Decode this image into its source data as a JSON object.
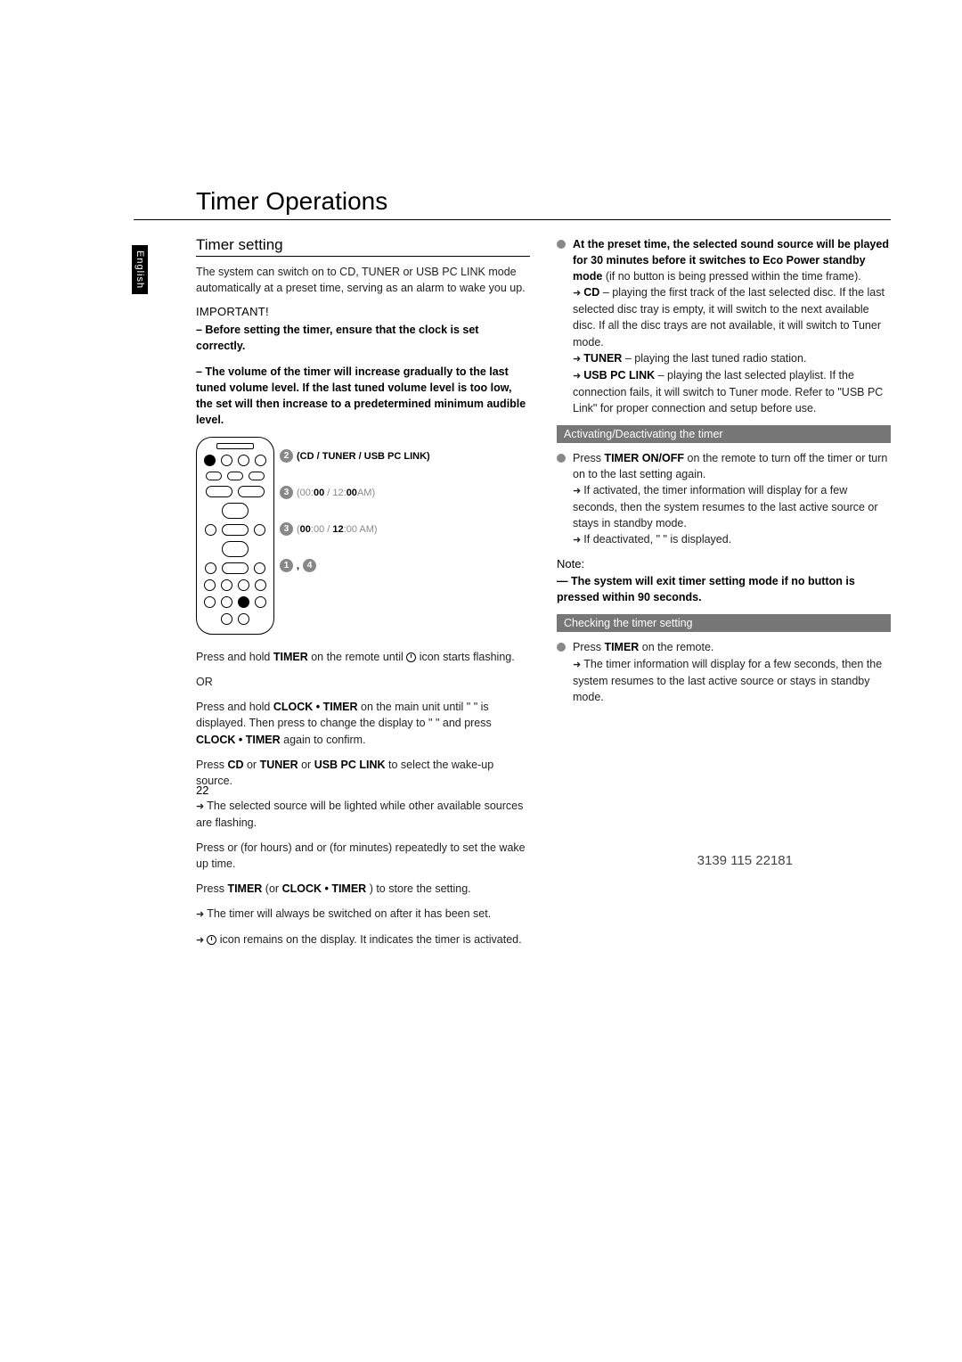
{
  "language_tab": "English",
  "title": "Timer Operations",
  "left": {
    "heading": "Timer setting",
    "intro": "The system can switch on to CD, TUNER or USB PC LINK mode automatically at a preset time, serving as an alarm to wake you up.",
    "important_label": "IMPORTANT!",
    "important_1": "– Before setting the timer, ensure that the clock is set correctly.",
    "important_2": "– The volume of the timer will increase gradually to the last tuned volume level. If the last tuned volume level is too low, the set will then increase to a predetermined minimum audible level.",
    "callout_2": "(CD / TUNER / USB PC LINK)",
    "callout_3a_prefix": "(00:",
    "callout_3a_bold": "00",
    "callout_3a_mid": " / 12:",
    "callout_3a_bold2": "00",
    "callout_3a_suffix": "AM)",
    "callout_3b_prefix": "(",
    "callout_3b_bold": "00",
    "callout_3b_mid": ":00 / ",
    "callout_3b_bold2": "12",
    "callout_3b_suffix": ":00 AM)",
    "callout_4": ",",
    "step1_a": "Press and hold ",
    "step1_b": "TIMER",
    "step1_c": " on the remote until ",
    "step1_d": " icon starts flashing.",
    "or": "OR",
    "step1alt_a": "Press and hold ",
    "step1alt_b": "CLOCK • TIMER",
    "step1alt_c": " on the main unit until \"        \" is displayed. Then press      to change the display to \"         \" and press ",
    "step1alt_d": "CLOCK • TIMER",
    "step1alt_e": " again to confirm.",
    "step2_a": "Press ",
    "step2_b": "CD",
    "step2_c": " or ",
    "step2_d": "TUNER",
    "step2_e": " or ",
    "step2_f": "USB PC LINK",
    "step2_g": " to select the wake-up source.",
    "step2_res": "The selected source will be lighted while other available sources are flashing.",
    "step3": "Press      or      (for hours) and      or      (for minutes) repeatedly to set the wake up time.",
    "step4_a": "Press ",
    "step4_b": "TIMER",
    "step4_c": " (or ",
    "step4_d": "CLOCK • TIMER",
    "step4_e": " ) to store the setting.",
    "step4_res1": "The timer will always be switched on after it has been set.",
    "step4_res2": " icon remains on the display. It indicates the timer is activated."
  },
  "right": {
    "preset_bold": "At the preset time, the selected sound source will be played for 30 minutes before it switches to Eco Power standby mode",
    "preset_tail": " (if no button is being pressed within the time frame).",
    "cd_label": "CD",
    "cd_text": " – playing the first track of the last selected disc. If the last selected disc tray is empty, it will switch to the next available disc. If all the disc trays are not available, it will switch to Tuner mode.",
    "tuner_label": "TUNER",
    "tuner_text": " – playing the last tuned radio station.",
    "usb_label": "USB PC LINK",
    "usb_text": " – playing the last selected playlist. If the connection fails, it will switch to Tuner mode. Refer to \"USB PC Link\" for proper connection and setup before use.",
    "sub1": "Activating/Deactivating the timer",
    "act_a": "Press ",
    "act_b": "TIMER ON/OFF",
    "act_c": " on the remote to turn off the timer or turn on to the last setting again.",
    "act_res1": "If activated, the timer information will display for a few seconds, then the system resumes to the last active source or stays in standby mode.",
    "act_res2": "If deactivated, \"     \" is displayed.",
    "note_label": "Note:",
    "note_text": "— The system will exit timer setting mode if no button is pressed within 90 seconds.",
    "sub2": "Checking the timer setting",
    "chk_a": "Press ",
    "chk_b": "TIMER",
    "chk_c": " on the remote.",
    "chk_res": "The timer information will display for a few seconds, then the system resumes to the last active source or stays in standby mode."
  },
  "page_number": "22",
  "doc_id": "3139 115 22181"
}
